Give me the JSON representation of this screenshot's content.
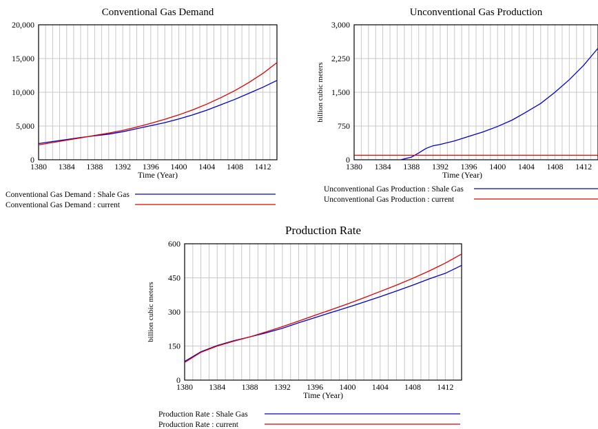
{
  "chart_data": [
    {
      "type": "line",
      "title": "Conventional Gas Demand",
      "xlabel": "Time (Year)",
      "ylabel": "",
      "xlim": [
        1380,
        1414
      ],
      "ylim": [
        0,
        20000
      ],
      "x_ticks": [
        "1380",
        "1384",
        "1388",
        "1392",
        "1396",
        "1400",
        "1404",
        "1408",
        "1412"
      ],
      "y_ticks": [
        "0",
        "5,000",
        "10,000",
        "15,000",
        "20,000"
      ],
      "grid": true,
      "legend_position": "bottom",
      "series": [
        {
          "name": "Conventional Gas Demand : Shale Gas",
          "color": "#0000cc",
          "x": [
            1380,
            1382,
            1384,
            1386,
            1388,
            1390,
            1392,
            1394,
            1396,
            1398,
            1400,
            1402,
            1404,
            1406,
            1408,
            1410,
            1412,
            1414
          ],
          "y": [
            2400,
            2700,
            3000,
            3300,
            3550,
            3800,
            4150,
            4600,
            5050,
            5500,
            6050,
            6650,
            7350,
            8150,
            8950,
            9850,
            10750,
            11750
          ]
        },
        {
          "name": "Conventional Gas Demand : current",
          "color": "#dd0000",
          "x": [
            1380,
            1382,
            1384,
            1386,
            1388,
            1390,
            1392,
            1394,
            1396,
            1398,
            1400,
            1402,
            1404,
            1406,
            1408,
            1410,
            1412,
            1414
          ],
          "y": [
            2200,
            2550,
            2900,
            3250,
            3600,
            3950,
            4350,
            4850,
            5400,
            6000,
            6650,
            7400,
            8250,
            9200,
            10250,
            11450,
            12800,
            14400
          ]
        }
      ]
    },
    {
      "type": "line",
      "title": "Unconventional Gas Production",
      "xlabel": "Time (Year)",
      "ylabel": "billion cubic meters",
      "xlim": [
        1380,
        1414
      ],
      "ylim": [
        0,
        3000
      ],
      "x_ticks": [
        "1380",
        "1384",
        "1388",
        "1392",
        "1396",
        "1400",
        "1404",
        "1408",
        "1412"
      ],
      "y_ticks": [
        "0",
        "750",
        "1,500",
        "2,250",
        "3,000"
      ],
      "grid": true,
      "legend_position": "bottom",
      "series": [
        {
          "name": "Unconventional Gas Production : Shale Gas",
          "color": "#0000cc",
          "x": [
            1380,
            1385,
            1386,
            1388,
            1389,
            1390,
            1391,
            1392,
            1394,
            1396,
            1398,
            1400,
            1402,
            1404,
            1406,
            1408,
            1410,
            1412,
            1414
          ],
          "y": [
            -100,
            -100,
            -20,
            60,
            150,
            250,
            310,
            340,
            420,
            520,
            620,
            740,
            880,
            1060,
            1250,
            1500,
            1780,
            2100,
            2480
          ]
        },
        {
          "name": "Unconventional Gas Production : current",
          "color": "#dd0000",
          "x": [
            1380,
            1414
          ],
          "y": [
            100,
            100
          ]
        }
      ]
    },
    {
      "type": "line",
      "title": "Production Rate",
      "xlabel": "Time (Year)",
      "ylabel": "billion cubic meters",
      "xlim": [
        1380,
        1414
      ],
      "ylim": [
        0,
        600
      ],
      "x_ticks": [
        "1380",
        "1384",
        "1388",
        "1392",
        "1396",
        "1400",
        "1404",
        "1408",
        "1412"
      ],
      "y_ticks": [
        "0",
        "150",
        "300",
        "450",
        "600"
      ],
      "grid": true,
      "legend_position": "bottom",
      "series": [
        {
          "name": "Production Rate : Shale Gas",
          "color": "#0000cc",
          "x": [
            1380,
            1382,
            1384,
            1386,
            1388,
            1390,
            1392,
            1394,
            1396,
            1398,
            1400,
            1402,
            1404,
            1406,
            1408,
            1410,
            1412,
            1414
          ],
          "y": [
            82,
            125,
            152,
            173,
            190,
            208,
            228,
            252,
            275,
            298,
            320,
            343,
            367,
            392,
            418,
            445,
            470,
            505
          ]
        },
        {
          "name": "Production Rate : current",
          "color": "#dd0000",
          "x": [
            1380,
            1382,
            1384,
            1386,
            1388,
            1390,
            1392,
            1394,
            1396,
            1398,
            1400,
            1402,
            1404,
            1406,
            1408,
            1410,
            1412,
            1414
          ],
          "y": [
            78,
            122,
            150,
            171,
            190,
            212,
            235,
            260,
            285,
            310,
            335,
            362,
            390,
            418,
            448,
            480,
            515,
            555
          ]
        }
      ]
    }
  ]
}
